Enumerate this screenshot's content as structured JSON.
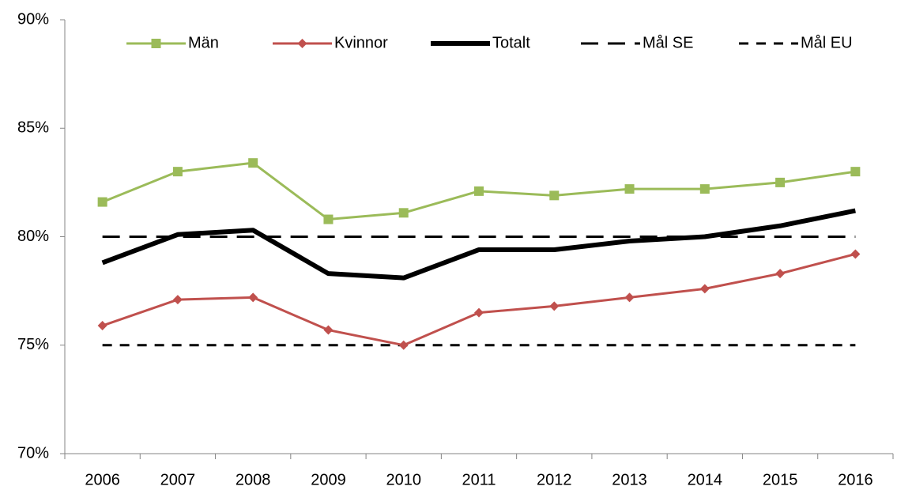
{
  "chart_data": {
    "type": "line",
    "categories": [
      "2006",
      "2007",
      "2008",
      "2009",
      "2010",
      "2011",
      "2012",
      "2013",
      "2014",
      "2015",
      "2016"
    ],
    "series": [
      {
        "name": "Män",
        "color": "#9bbb59",
        "marker": "square",
        "dash": "solid",
        "width": 3,
        "values": [
          81.6,
          83.0,
          83.4,
          80.8,
          81.1,
          82.1,
          81.9,
          82.2,
          82.2,
          82.5,
          83.0
        ]
      },
      {
        "name": "Kvinnor",
        "color": "#c0504d",
        "marker": "diamond",
        "dash": "solid",
        "width": 3,
        "values": [
          75.9,
          77.1,
          77.2,
          75.7,
          75.0,
          76.5,
          76.8,
          77.2,
          77.6,
          78.3,
          79.2
        ]
      },
      {
        "name": "Totalt",
        "color": "#000000",
        "marker": "none",
        "dash": "solid",
        "width": 6,
        "values": [
          78.8,
          80.1,
          80.3,
          78.3,
          78.1,
          79.4,
          79.4,
          79.8,
          80.0,
          80.5,
          81.2
        ]
      },
      {
        "name": "Mål SE",
        "color": "#000000",
        "marker": "none",
        "dash": "long",
        "width": 3,
        "values": [
          80,
          80,
          80,
          80,
          80,
          80,
          80,
          80,
          80,
          80,
          80
        ]
      },
      {
        "name": "Mål EU",
        "color": "#000000",
        "marker": "none",
        "dash": "short",
        "width": 3,
        "values": [
          75,
          75,
          75,
          75,
          75,
          75,
          75,
          75,
          75,
          75,
          75
        ]
      }
    ],
    "ylim": [
      70,
      90
    ],
    "yticks": [
      {
        "value": 70,
        "label": "70%"
      },
      {
        "value": 75,
        "label": "75%"
      },
      {
        "value": 80,
        "label": "80%"
      },
      {
        "value": 85,
        "label": "85%"
      },
      {
        "value": 90,
        "label": "90%"
      }
    ],
    "legend": "top",
    "grid": false
  }
}
